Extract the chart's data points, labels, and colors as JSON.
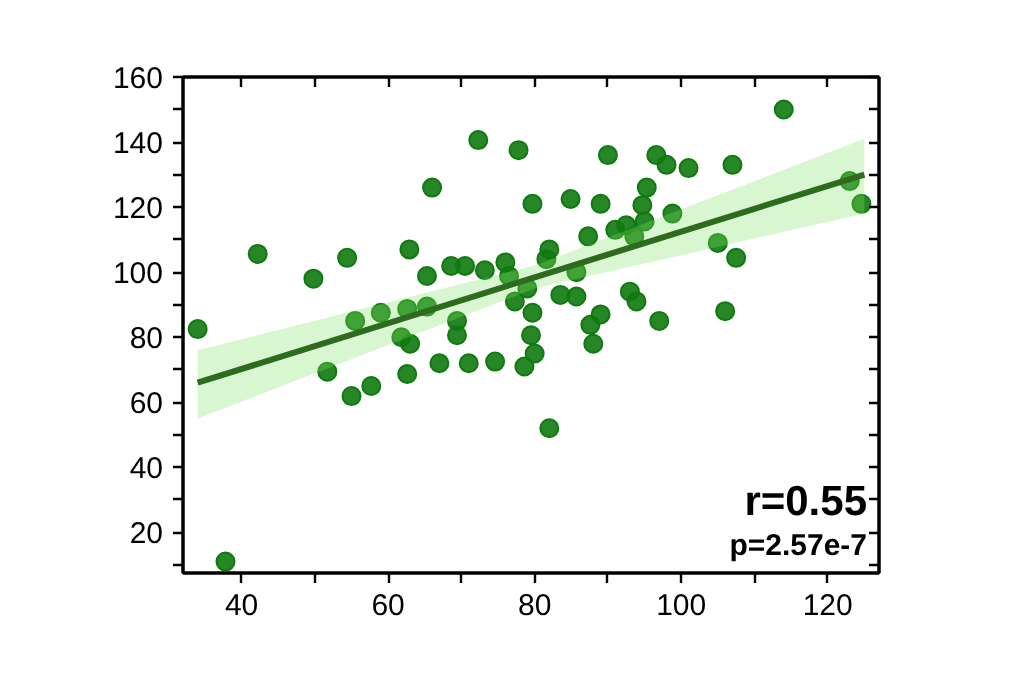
{
  "chart_data": {
    "type": "scatter",
    "xlim": [
      32,
      127
    ],
    "ylim": [
      7.5,
      160
    ],
    "xticks": [
      40,
      {
        "value": 50,
        "label": null
      },
      60,
      {
        "value": 70,
        "label": null
      },
      80,
      {
        "value": 90,
        "label": null
      },
      100,
      {
        "value": 110,
        "label": null
      },
      120
    ],
    "yticks": [
      {
        "value": 10,
        "label": null
      },
      20,
      {
        "value": 30,
        "label": null
      },
      40,
      {
        "value": 50,
        "label": null
      },
      60,
      {
        "value": 70,
        "label": null
      },
      80,
      {
        "value": 90,
        "label": null
      },
      100,
      {
        "value": 110,
        "label": null
      },
      120,
      {
        "value": 130,
        "label": null
      },
      140,
      {
        "value": 150,
        "label": null
      },
      160
    ],
    "grid": false,
    "annotations": [
      "r=0.55",
      "p=2.57e-7"
    ],
    "series": [
      {
        "marker": "circle",
        "color": "#0f7a0f",
        "x": [
          34,
          37.8,
          42.2,
          49.8,
          54.4,
          62.9,
          66,
          72.3,
          65.3,
          68.6,
          70.5,
          55.5,
          59,
          62.6,
          65.3,
          51.7,
          55,
          57.7,
          61.8,
          63,
          62.6,
          67,
          71,
          69.4,
          69.4,
          74.6,
          77.8,
          90,
          96.6,
          98,
          101,
          107,
          114,
          79.7,
          84.9,
          89,
          94.7,
          95.3,
          98.8,
          87.3,
          91,
          92.5,
          93.6,
          95,
          82,
          81.6,
          76,
          73.2,
          85.7,
          76.5,
          79,
          77.3,
          83.5,
          85.7,
          93,
          93.9,
          79.7,
          89,
          87.6,
          97,
          106,
          105,
          107.5,
          123,
          124.6,
          79.5,
          80,
          78.6,
          82,
          88
        ],
        "values": [
          82.5,
          11,
          105.6,
          98,
          104.4,
          107,
          126,
          140.6,
          98.8,
          101.9,
          101.9,
          85,
          87.5,
          88.7,
          89.4,
          69.4,
          61.9,
          65,
          80,
          78,
          68.7,
          72,
          72,
          80.6,
          85,
          72.5,
          137.5,
          136,
          136,
          133,
          132,
          133,
          150,
          121,
          122.5,
          121,
          120.6,
          126,
          118,
          111,
          113,
          114.4,
          111,
          115.6,
          107,
          104,
          103,
          100.6,
          100,
          98.8,
          95,
          91,
          93,
          92.5,
          94,
          91,
          87.5,
          87,
          83.8,
          85,
          88,
          109,
          104.4,
          128,
          121,
          80.6,
          75,
          71,
          52,
          78
        ]
      },
      {
        "type": "line",
        "color": "#2e6b1f",
        "x": [
          34,
          80,
          125
        ],
        "values": [
          66,
          98.4,
          130
        ],
        "lower": [
          55,
          95,
          118
        ],
        "upper": [
          76,
          102,
          141
        ]
      }
    ]
  }
}
